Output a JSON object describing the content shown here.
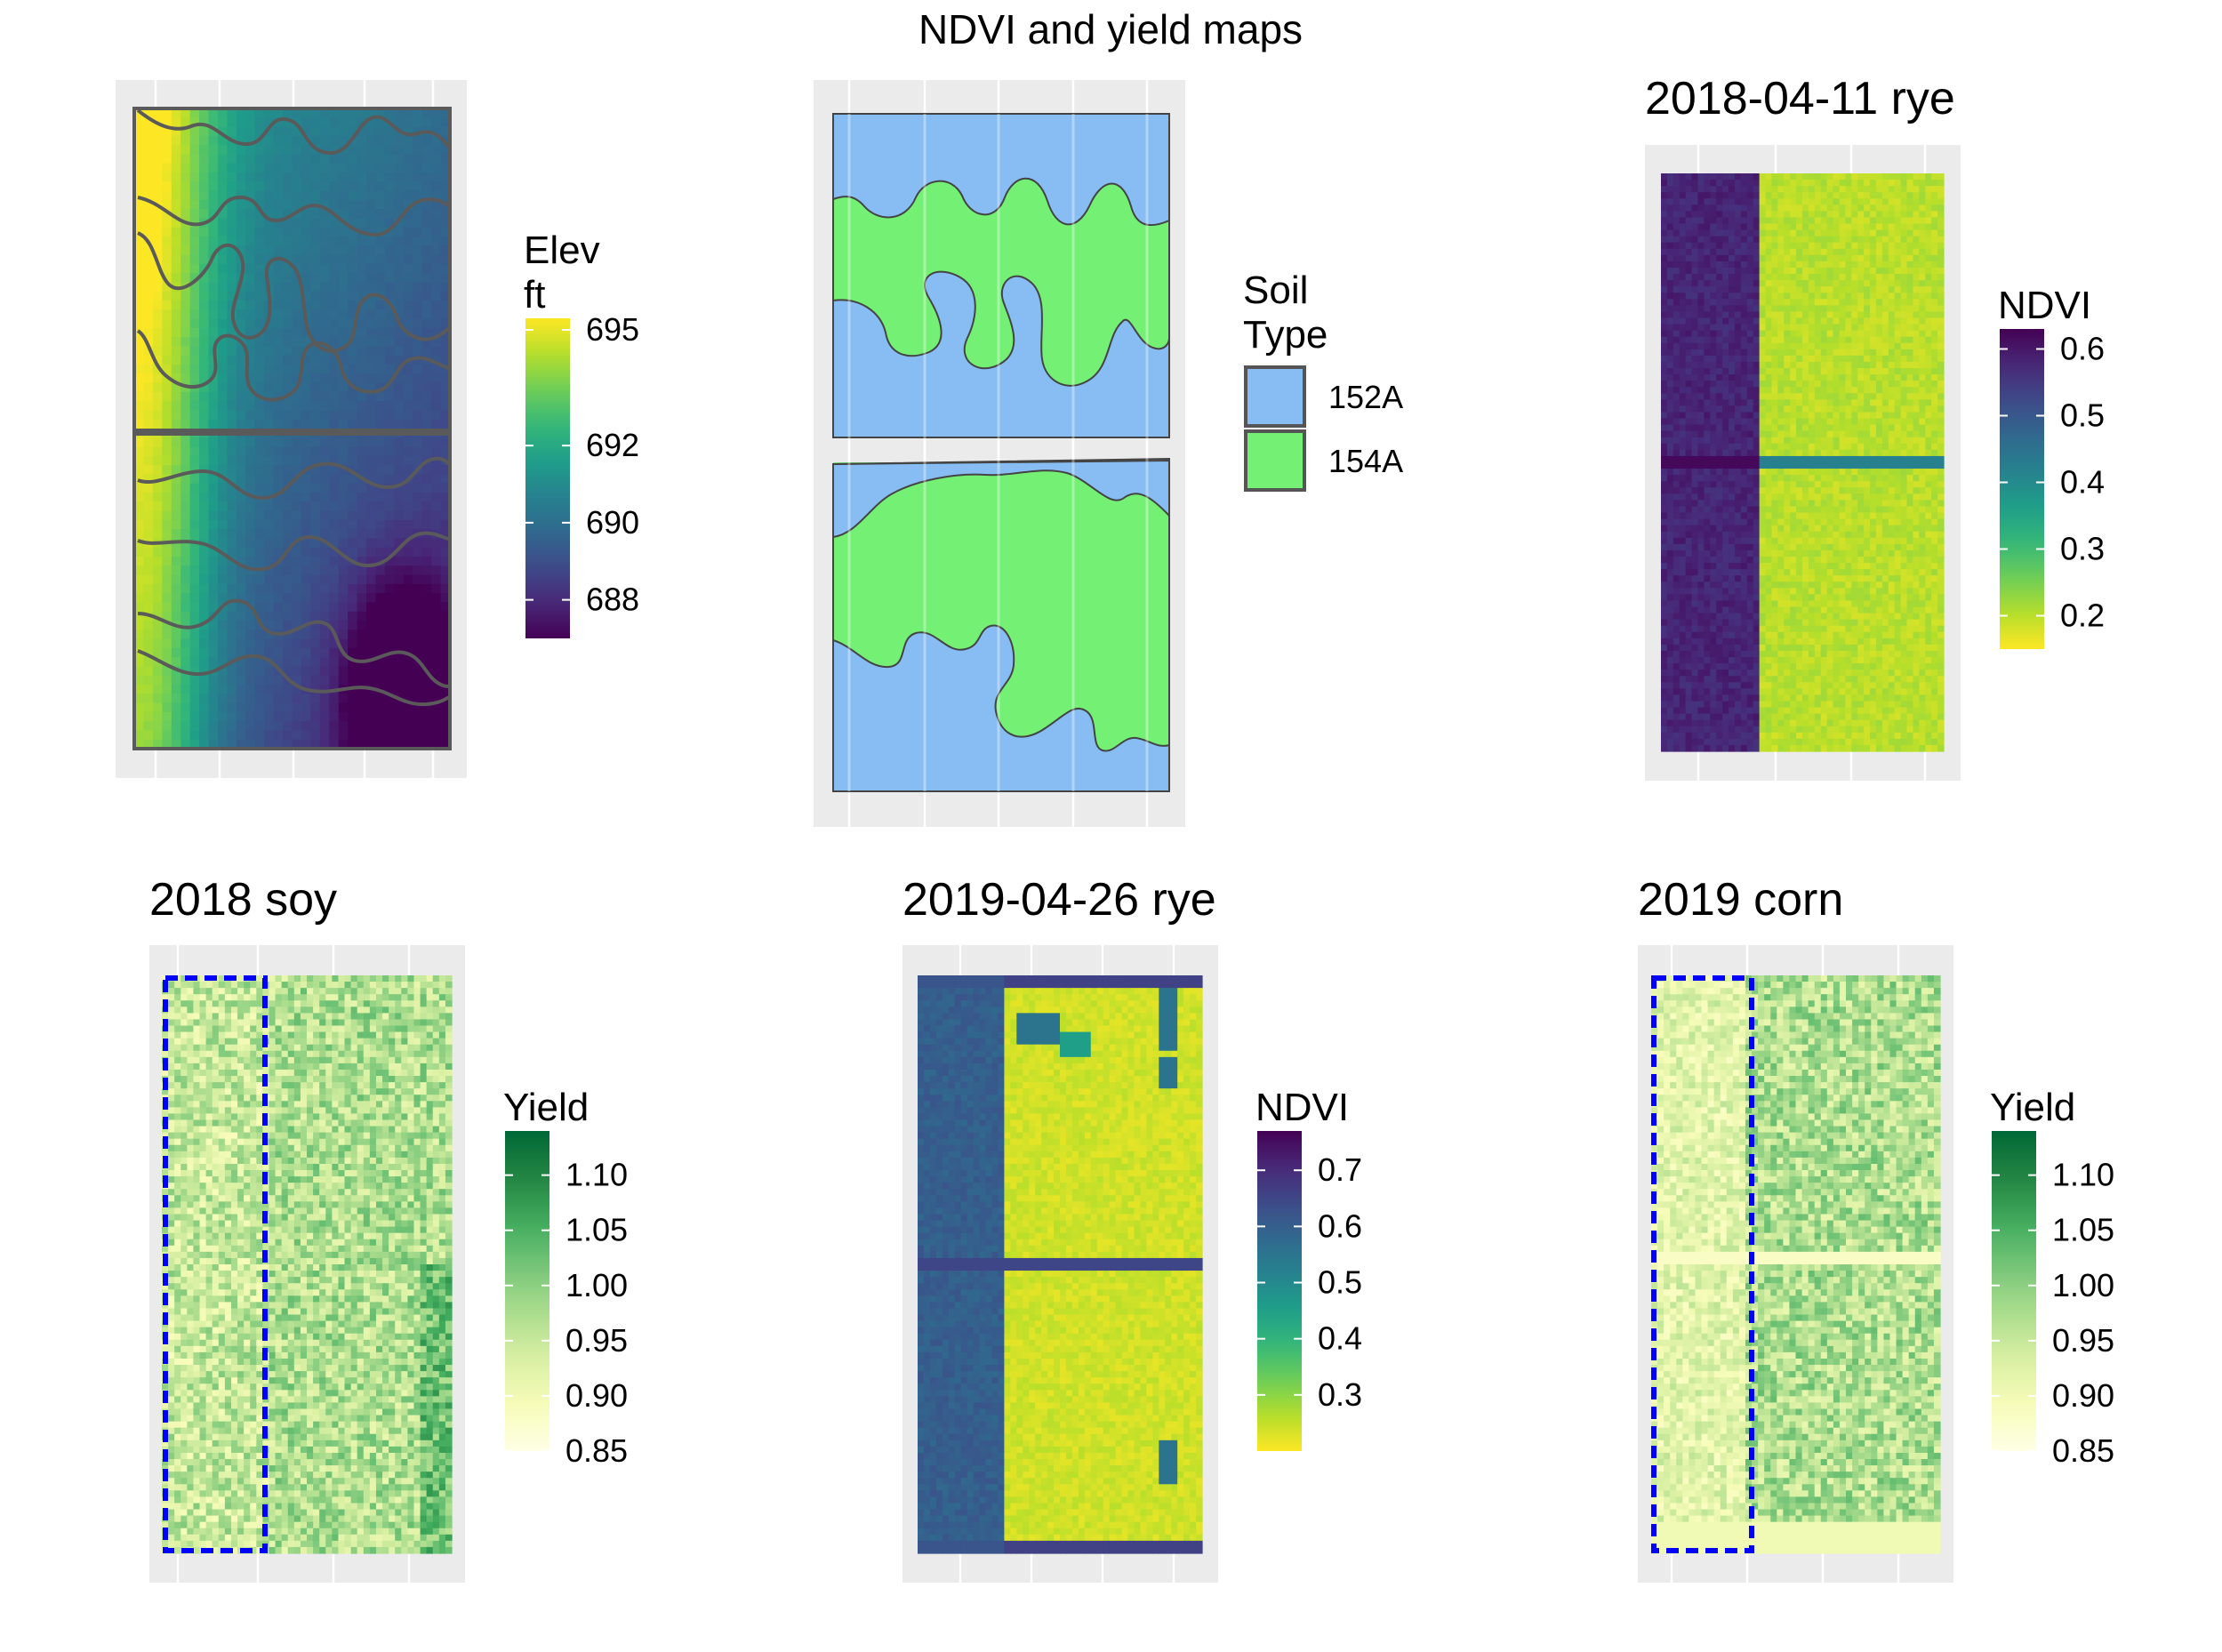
{
  "figure": {
    "title": "NDVI and yield maps"
  },
  "colors": {
    "panel_background": "#ebebeb",
    "grid": "#ffffff",
    "soil_152A": "#88BDF4",
    "soil_154A": "#74F174",
    "contour": "#5a5a5a",
    "strip_box": "#0000ff",
    "viridis": [
      "#440154",
      "#482878",
      "#3e4a89",
      "#31688e",
      "#26828e",
      "#1f9e89",
      "#35b779",
      "#6ece58",
      "#b5de2b",
      "#fde725"
    ],
    "greens": [
      "#ffffe5",
      "#f7fcb9",
      "#d9f0a3",
      "#addd8e",
      "#78c679",
      "#41ab5d",
      "#238443",
      "#006837"
    ]
  },
  "chart_data": [
    {
      "id": "elevation",
      "type": "heatmap",
      "title": "",
      "legend": {
        "title_lines": [
          "Elev",
          "ft"
        ],
        "palette": "viridis",
        "reverse": false,
        "ticks": [
          688,
          690,
          692,
          695
        ],
        "range": [
          687,
          695.3
        ]
      },
      "overlay": "soil-boundaries",
      "field": "elevation"
    },
    {
      "id": "soil",
      "type": "heatmap",
      "title": "",
      "legend": {
        "title_lines": [
          "Soil",
          "Type"
        ],
        "categories": [
          "152A",
          "154A"
        ]
      },
      "field": "soil"
    },
    {
      "id": "ndvi-2018",
      "type": "heatmap",
      "title": "2018-04-11 rye",
      "legend": {
        "title_lines": [
          "NDVI"
        ],
        "palette": "viridis",
        "reverse": true,
        "ticks": [
          0.2,
          0.3,
          0.4,
          0.5,
          0.6
        ],
        "range": [
          0.15,
          0.63
        ]
      },
      "strips": [
        {
          "x_from": 0,
          "x_to": 0.34,
          "value": 0.58
        },
        {
          "x_from": 0.34,
          "x_to": 1,
          "value": 0.2
        }
      ],
      "field": "ndvi"
    },
    {
      "id": "yield-2018",
      "type": "heatmap",
      "title": "2018 soy",
      "legend": {
        "title_lines": [
          "Yield"
        ],
        "palette": "greens",
        "reverse": false,
        "ticks": [
          0.85,
          0.9,
          0.95,
          1.0,
          1.05,
          1.1
        ],
        "range": [
          0.85,
          1.14
        ]
      },
      "tick_labels": [
        "0.85",
        "0.90",
        "0.95",
        "1.00",
        "1.05",
        "1.10"
      ],
      "field": "yield"
    },
    {
      "id": "ndvi-2019",
      "type": "heatmap",
      "title": "2019-04-26 rye",
      "legend": {
        "title_lines": [
          "NDVI"
        ],
        "palette": "viridis",
        "reverse": true,
        "ticks": [
          0.3,
          0.4,
          0.5,
          0.6,
          0.7
        ],
        "range": [
          0.2,
          0.77
        ]
      },
      "strips": [
        {
          "x_from": 0,
          "x_to": 0.31,
          "value": 0.6
        },
        {
          "x_from": 0.31,
          "x_to": 1,
          "value": 0.24
        }
      ],
      "field": "ndvi"
    },
    {
      "id": "yield-2019",
      "type": "heatmap",
      "title": "2019 corn",
      "legend": {
        "title_lines": [
          "Yield"
        ],
        "palette": "greens",
        "reverse": false,
        "ticks": [
          0.85,
          0.9,
          0.95,
          1.0,
          1.05,
          1.1
        ],
        "range": [
          0.85,
          1.14
        ]
      },
      "tick_labels": [
        "0.85",
        "0.90",
        "0.95",
        "1.00",
        "1.05",
        "1.10"
      ],
      "field": "yield"
    }
  ]
}
